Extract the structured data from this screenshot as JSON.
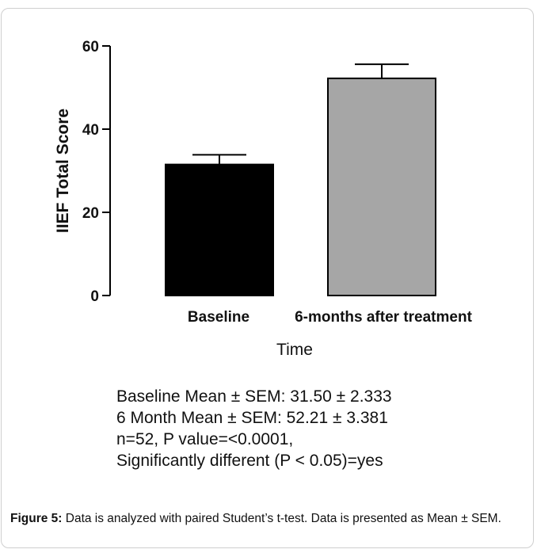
{
  "chart_data": {
    "type": "bar",
    "categories": [
      "Baseline",
      "6-months after treatment"
    ],
    "values": [
      31.5,
      52.21
    ],
    "errors": [
      2.333,
      3.381
    ],
    "bar_colors": [
      "#000000",
      "#a6a6a6"
    ],
    "title": "",
    "xlabel": "Time",
    "ylabel": "IIEF Total Score",
    "ylim": [
      0,
      60
    ],
    "yticks": [
      0,
      20,
      40,
      60
    ],
    "grid": false
  },
  "stats": {
    "line1": "Baseline Mean ± SEM: 31.50 ± 2.333",
    "line2": "6 Month Mean ± SEM: 52.21 ± 3.381",
    "line3": "n=52, P value=<0.0001,",
    "line4": "Significantly different (P < 0.05)=yes"
  },
  "caption": {
    "label": "Figure 5:",
    "text": " Data is analyzed with paired Student’s t-test. Data is presented as Mean ± SEM."
  }
}
